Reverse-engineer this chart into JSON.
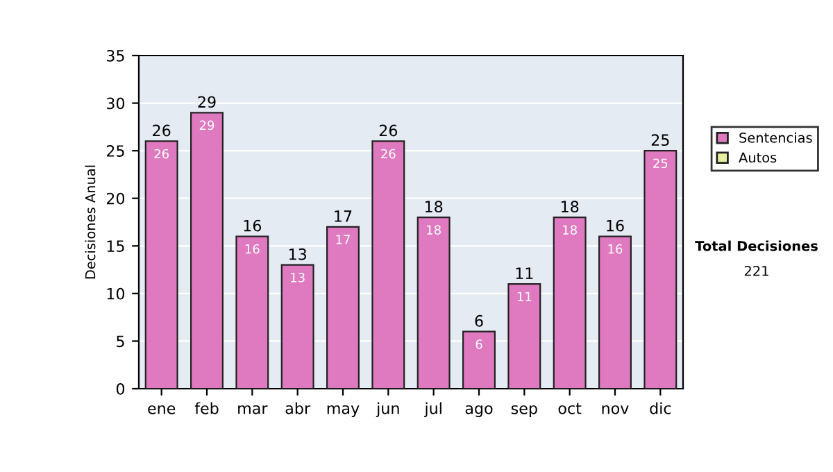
{
  "chart_data": {
    "type": "bar",
    "stacked": true,
    "ylabel": "Decisiones Anual",
    "categories": [
      "ene",
      "feb",
      "mar",
      "abr",
      "may",
      "jun",
      "jul",
      "ago",
      "sep",
      "oct",
      "nov",
      "dic"
    ],
    "series": [
      {
        "name": "Sentencias",
        "color": "#e07ac0",
        "values": [
          26,
          29,
          16,
          13,
          17,
          26,
          18,
          6,
          11,
          18,
          16,
          25
        ]
      },
      {
        "name": "Autos",
        "color": "#e8f0a0",
        "values": [
          null,
          null,
          null,
          null,
          null,
          null,
          null,
          null,
          null,
          null,
          null,
          null
        ]
      }
    ],
    "totals": [
      "26",
      "29",
      "16",
      "13",
      "17",
      "26",
      "18",
      "6",
      "11",
      "18",
      "16",
      "25"
    ],
    "data_labels": true,
    "ylim": [
      0,
      35
    ],
    "yticks": [
      0,
      5,
      10,
      15,
      20,
      25,
      30,
      35
    ],
    "grid": "y",
    "legend": "right",
    "annotations": [
      "Total Decisiones",
      "221"
    ]
  }
}
